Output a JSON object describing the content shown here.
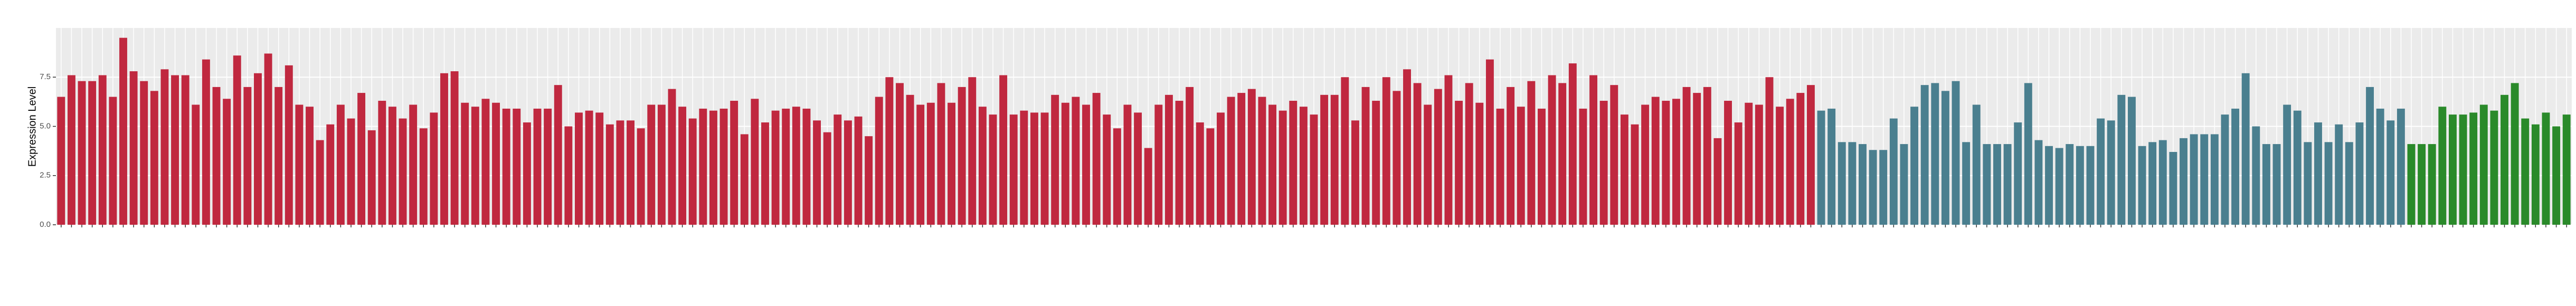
{
  "chart_data": {
    "type": "bar",
    "y_label": "Expression Level",
    "ylim": [
      0,
      10
    ],
    "yticks": [
      {
        "value": 0,
        "label": "0.0"
      },
      2.5,
      {
        "value": 5,
        "label": "5.0"
      },
      7.5
    ],
    "grid": true,
    "series": [
      {
        "color": "#c0283f",
        "values": [
          6.5,
          7.6,
          7.3,
          7.3,
          7.6,
          6.5,
          9.5,
          7.8,
          7.3,
          6.8,
          7.9,
          7.6,
          7.6,
          6.1,
          8.4,
          7.0,
          6.4,
          8.6,
          7.0,
          7.7,
          8.7,
          7.0,
          8.1,
          6.1,
          6.0,
          4.3,
          5.1,
          6.1,
          5.4,
          6.7,
          4.8,
          6.3,
          6.0,
          5.4,
          6.1,
          4.9,
          5.7,
          7.7,
          7.8,
          6.2,
          6.0,
          6.4,
          6.2,
          5.9,
          5.9,
          5.2,
          5.9,
          5.9,
          7.1,
          5.0,
          5.7,
          5.8,
          5.7,
          5.1,
          5.3,
          5.3,
          4.9,
          6.1,
          6.1,
          6.9,
          6.0,
          5.4,
          5.9,
          5.8,
          5.9,
          6.3,
          4.6,
          6.4,
          5.2,
          5.8,
          5.9,
          6.0,
          5.9,
          5.3,
          4.7,
          5.6,
          5.3,
          5.5,
          4.5,
          6.5,
          7.5,
          7.2,
          6.6,
          6.1,
          6.2,
          7.2,
          6.2,
          7.0,
          7.5,
          6.0,
          5.6,
          7.6,
          5.6,
          5.8,
          5.7,
          5.7,
          6.6,
          6.2,
          6.5,
          6.1,
          6.7,
          5.6,
          4.9,
          6.1,
          5.7,
          3.9,
          6.1,
          6.6,
          6.3,
          7.0,
          5.2,
          4.9,
          5.7,
          6.5,
          6.7,
          6.9,
          6.5,
          6.1,
          5.8,
          6.3,
          6.0,
          5.6,
          6.6,
          6.6,
          7.5,
          5.3,
          7.0,
          6.3,
          7.5,
          6.8,
          7.9,
          7.2,
          6.1,
          6.9,
          7.6,
          6.3,
          7.2,
          6.2,
          8.4,
          5.9,
          7.0,
          6.0,
          7.3,
          5.9,
          7.6,
          7.2,
          8.2,
          5.9,
          7.6,
          6.3,
          7.1,
          5.6,
          5.1,
          6.1,
          6.5,
          6.3,
          6.4,
          7.0,
          6.7,
          7.0,
          4.4,
          6.3,
          5.2,
          6.2,
          6.1,
          7.5,
          6.0,
          6.4,
          6.7,
          7.1
        ]
      },
      {
        "color": "#4a7f8f",
        "values": [
          5.8,
          5.9,
          4.2,
          4.2,
          4.1,
          3.8,
          3.8,
          5.4,
          4.1,
          6.0,
          7.1,
          7.2,
          6.8,
          7.3,
          4.2,
          6.1,
          4.1,
          4.1,
          4.1,
          5.2,
          7.2,
          4.3,
          4.0,
          3.9,
          4.1,
          4.0,
          4.0,
          5.4,
          5.3,
          6.6,
          6.5,
          4.0,
          4.2,
          4.3,
          3.7,
          4.4,
          4.6,
          4.6,
          4.6,
          5.6,
          5.9,
          7.7,
          5.0,
          4.1,
          4.1,
          6.1,
          5.8,
          4.2,
          5.2,
          4.2,
          5.1,
          4.2,
          5.2,
          7.0,
          5.9,
          5.3,
          5.9
        ]
      },
      {
        "color": "#2a8a2a",
        "values": [
          4.1,
          4.1,
          4.1,
          6.0,
          5.6,
          5.6,
          5.7,
          6.1,
          5.8,
          6.6,
          7.2,
          5.4,
          5.1,
          5.7,
          5.0,
          5.6
        ]
      }
    ]
  }
}
